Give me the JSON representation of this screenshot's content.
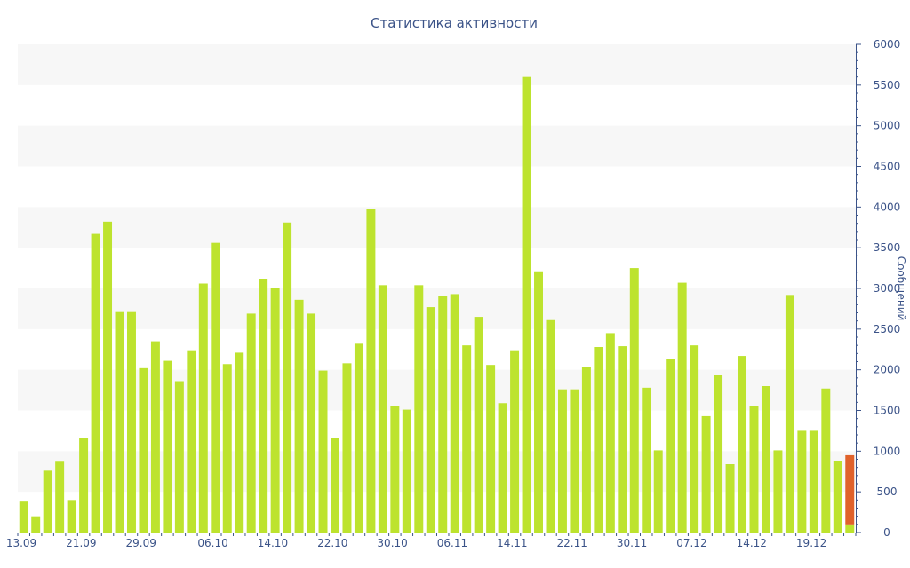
{
  "chart_data": {
    "type": "bar",
    "title": "Статистика активности",
    "ylabel": "Сообщений",
    "xlabel": "",
    "ylim": [
      0,
      6000
    ],
    "y_ticks": [
      0,
      500,
      1000,
      1500,
      2000,
      2500,
      3000,
      3500,
      4000,
      4500,
      5000,
      5500,
      6000
    ],
    "x_tick_labels": [
      {
        "index": 0,
        "label": "13.09"
      },
      {
        "index": 5,
        "label": "21.09"
      },
      {
        "index": 10,
        "label": "29.09"
      },
      {
        "index": 16,
        "label": "06.10"
      },
      {
        "index": 21,
        "label": "14.10"
      },
      {
        "index": 26,
        "label": "22.10"
      },
      {
        "index": 31,
        "label": "30.10"
      },
      {
        "index": 36,
        "label": "06.11"
      },
      {
        "index": 41,
        "label": "14.11"
      },
      {
        "index": 46,
        "label": "22.11"
      },
      {
        "index": 51,
        "label": "30.11"
      },
      {
        "index": 56,
        "label": "07.12"
      },
      {
        "index": 61,
        "label": "14.12"
      },
      {
        "index": 66,
        "label": "19.12"
      }
    ],
    "grid": "alternating horizontal bands",
    "y_axis_position": "right",
    "colors": {
      "bar": "#bde32e",
      "highlight": "#e0622b",
      "text": "#3b5388",
      "axis": "#3b5388",
      "band": "#f7f7f7"
    },
    "values": [
      380,
      200,
      760,
      870,
      400,
      1160,
      3670,
      3820,
      2720,
      2720,
      2020,
      2350,
      2110,
      1860,
      2240,
      3060,
      3560,
      2070,
      2210,
      2690,
      3120,
      3010,
      3810,
      2860,
      2690,
      1990,
      1160,
      2080,
      2320,
      3980,
      3040,
      1560,
      1510,
      3040,
      2770,
      2910,
      2930,
      2300,
      2650,
      2060,
      1590,
      2240,
      5600,
      3210,
      2610,
      1760,
      1760,
      2040,
      2280,
      2450,
      2290,
      3250,
      1780,
      1010,
      2130,
      3070,
      2300,
      1430,
      1940,
      840,
      2170,
      1560,
      1800,
      1010,
      2920,
      1250,
      1250,
      1770,
      880,
      950
    ],
    "last_bar_highlight_base": 100
  }
}
